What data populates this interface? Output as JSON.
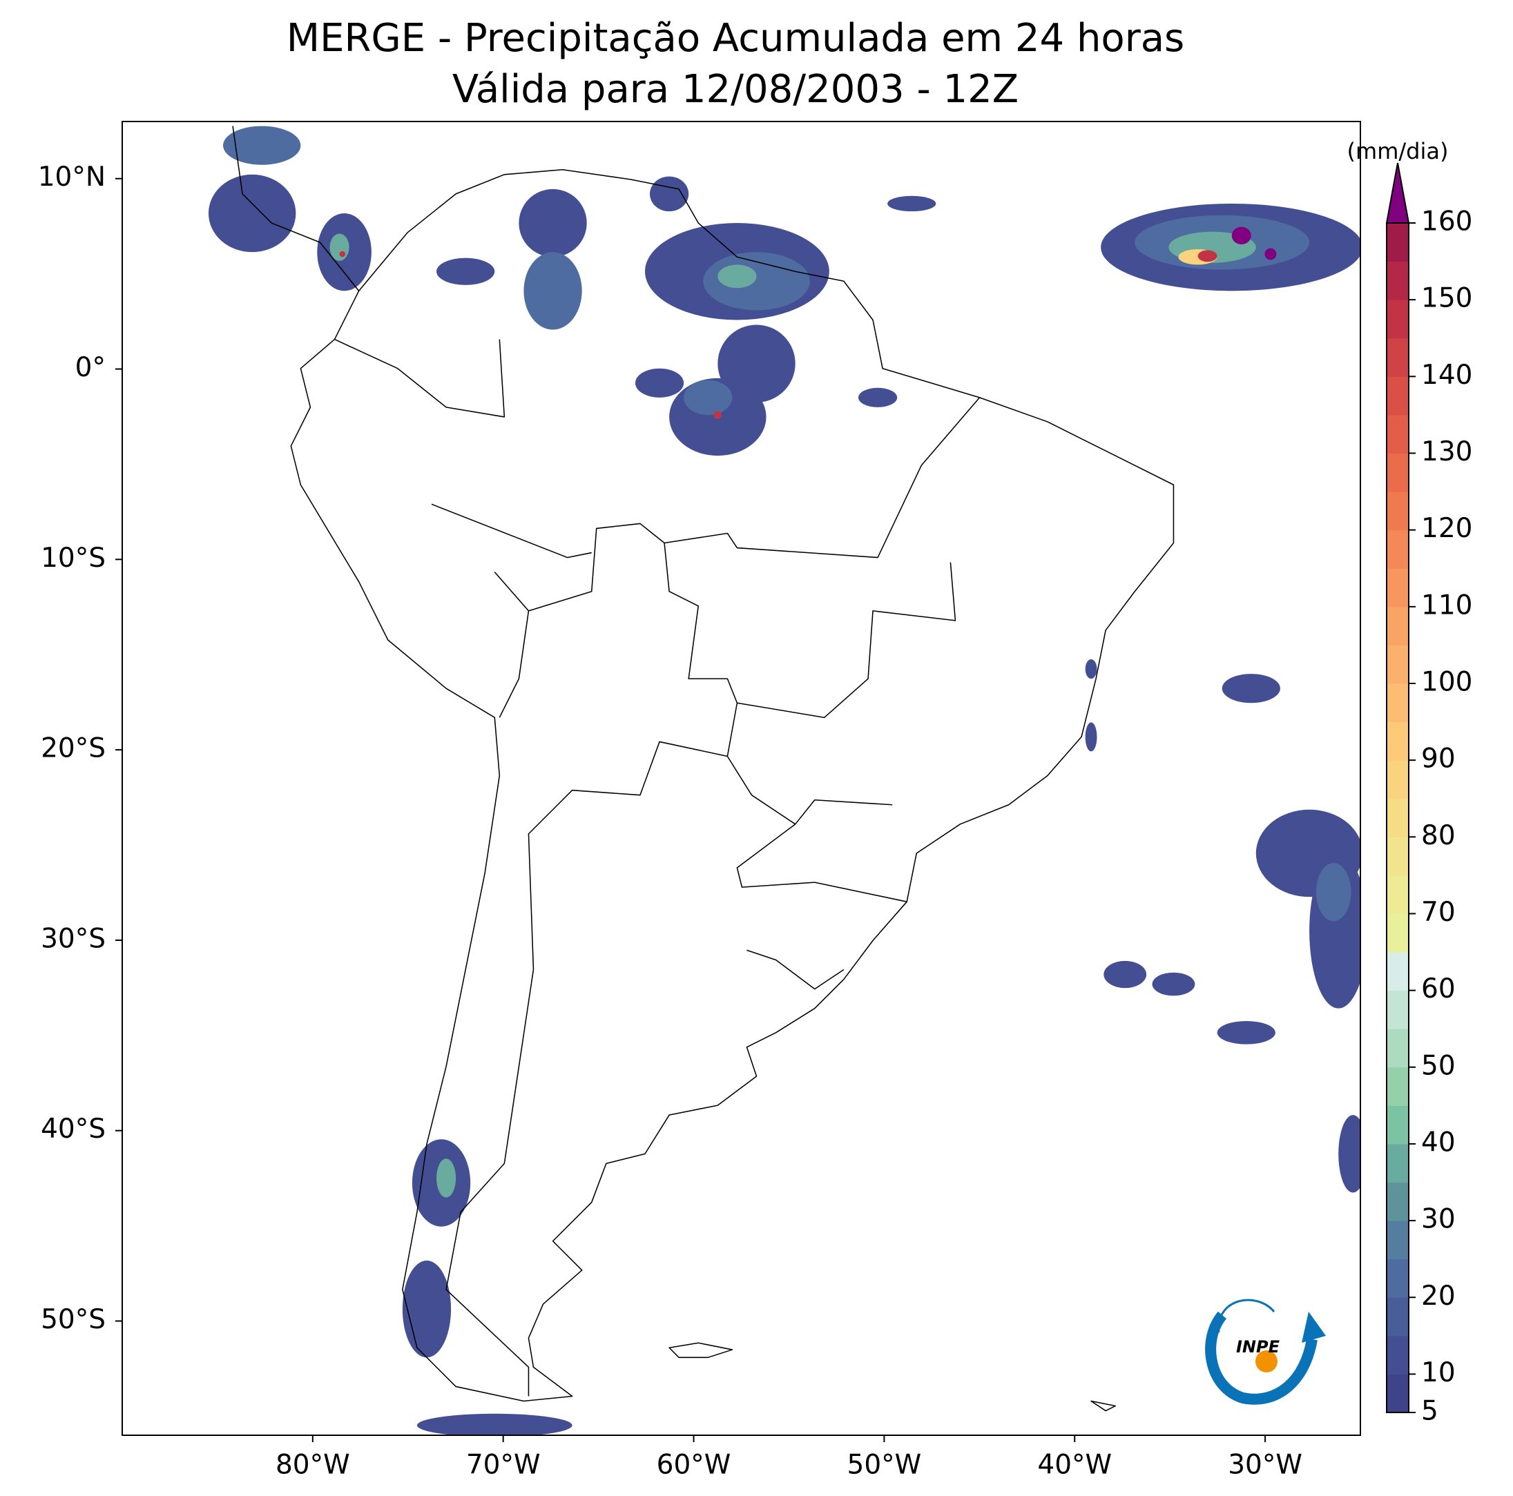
{
  "chart_data": {
    "type": "map",
    "title": "MERGE - Precipitação Acumulada em 24 horas",
    "subtitle": "Válida para 12/08/2003 - 12Z",
    "xlim": [
      -90,
      -25
    ],
    "ylim": [
      -56,
      13
    ],
    "xticks": [
      {
        "value": -80,
        "label": "80°W"
      },
      {
        "value": -70,
        "label": "70°W"
      },
      {
        "value": -60,
        "label": "60°W"
      },
      {
        "value": -50,
        "label": "50°W"
      },
      {
        "value": -40,
        "label": "40°W"
      },
      {
        "value": -30,
        "label": "30°W"
      }
    ],
    "yticks": [
      {
        "value": 10,
        "label": "10°N"
      },
      {
        "value": 0,
        "label": "0°"
      },
      {
        "value": -10,
        "label": "10°S"
      },
      {
        "value": -20,
        "label": "20°S"
      },
      {
        "value": -30,
        "label": "30°S"
      },
      {
        "value": -40,
        "label": "40°S"
      },
      {
        "value": -50,
        "label": "50°S"
      }
    ],
    "colorbar": {
      "label": "(mm/dia)",
      "lim": [
        5,
        160
      ],
      "ticks": [
        5,
        10,
        20,
        30,
        40,
        50,
        60,
        70,
        80,
        90,
        100,
        110,
        120,
        130,
        140,
        150,
        160
      ],
      "colors": [
        "#3e438a",
        "#444f93",
        "#4a5d9b",
        "#4f6ca0",
        "#557d9f",
        "#5e939c",
        "#6aab9f",
        "#7cc3a3",
        "#95d0ab",
        "#acdbc0",
        "#c2e5d5",
        "#d9ede8",
        "#e8f09b",
        "#eeeb94",
        "#f2e48c",
        "#f6dc85",
        "#f9d37d",
        "#fbc978",
        "#fcbd72",
        "#fbb06b",
        "#f9a464",
        "#f7965d",
        "#f48856",
        "#f07a4f",
        "#ea6c4b",
        "#e35e48",
        "#da5046",
        "#cf4245",
        "#c23445",
        "#b32846",
        "#a01c48"
      ],
      "extend_color": "#800080"
    },
    "logo": "INPE"
  }
}
